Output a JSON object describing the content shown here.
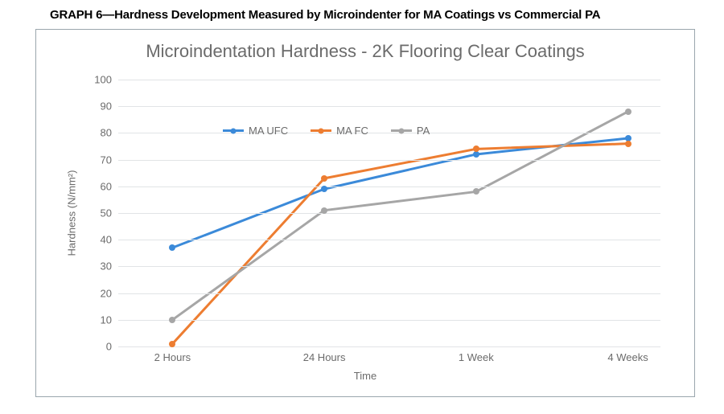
{
  "caption": "GRAPH 6—Hardness Development Measured by Microindenter for MA Coatings vs Commercial PA",
  "chart": {
    "type": "line",
    "title": "Microindentation Hardness - 2K Flooring Clear Coatings",
    "title_fontsize": 22,
    "title_color": "#6b6b6b",
    "background_color": "#ffffff",
    "grid_color": "#e1e4e6",
    "axis_text_color": "#6b6b6b",
    "axis_fontsize": 13,
    "x": {
      "title": "Time",
      "categories": [
        "2 Hours",
        "24 Hours",
        "1 Week",
        "4 Weeks"
      ]
    },
    "y": {
      "title": "Hardness (N/mm²)",
      "min": 0,
      "max": 100,
      "tick_step": 10
    },
    "series": [
      {
        "name": "MA UFC",
        "color": "#3b8ad9",
        "line_width": 3,
        "marker": "circle",
        "marker_size": 8,
        "values": [
          37,
          59,
          72,
          78
        ]
      },
      {
        "name": "MA FC",
        "color": "#ed7d31",
        "line_width": 3,
        "marker": "circle",
        "marker_size": 8,
        "values": [
          1,
          63,
          74,
          76
        ]
      },
      {
        "name": "PA",
        "color": "#a6a6a6",
        "line_width": 3,
        "marker": "circle",
        "marker_size": 8,
        "values": [
          10,
          51,
          58,
          88
        ]
      }
    ],
    "legend": {
      "position": "inside-top-left",
      "fontsize": 13
    }
  }
}
